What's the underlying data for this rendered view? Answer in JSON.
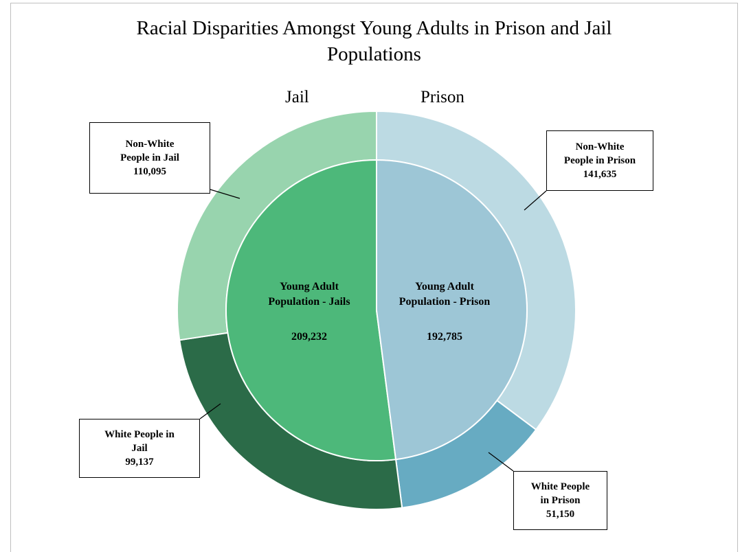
{
  "chart_data": {
    "type": "pie",
    "title": "Racial Disparities Amongst Young Adults in Prison and Jail Populations",
    "title_lines": [
      "Racial Disparities Amongst Young Adults in Prison and Jail",
      "Populations"
    ],
    "side_labels": {
      "left": "Jail",
      "right": "Prison"
    },
    "inner": [
      {
        "name_lines": [
          "Young Adult",
          "Population - Jails"
        ],
        "value": 209232,
        "value_label": "209,232",
        "color": "#4db87a"
      },
      {
        "name_lines": [
          "Young Adult",
          "Population - Prison"
        ],
        "value": 192785,
        "value_label": "192,785",
        "color": "#9dc6d6"
      }
    ],
    "outer": [
      {
        "group": "Jail",
        "name_lines": [
          "White People in",
          "Jail"
        ],
        "value": 99137,
        "value_label": "99,137",
        "color": "#2b6b48"
      },
      {
        "group": "Jail",
        "name_lines": [
          "Non-White",
          "People in Jail"
        ],
        "value": 110095,
        "value_label": "110,095",
        "color": "#98d4ae"
      },
      {
        "group": "Prison",
        "name_lines": [
          "Non-White",
          "People in Prison"
        ],
        "value": 141635,
        "value_label": "141,635",
        "color": "#bcdae3"
      },
      {
        "group": "Prison",
        "name_lines": [
          "White People",
          "in Prison"
        ],
        "value": 51150,
        "value_label": "51,150",
        "color": "#67abc2"
      }
    ]
  }
}
